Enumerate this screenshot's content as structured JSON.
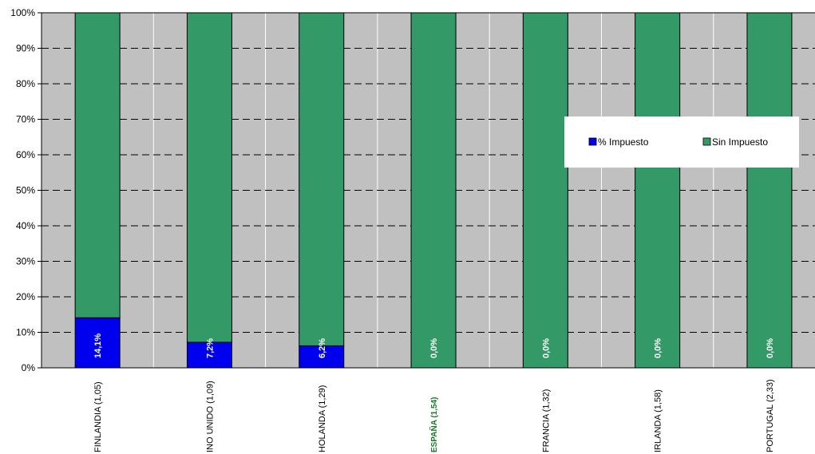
{
  "chart_data": {
    "type": "bar",
    "stacked": true,
    "percent_stacked": true,
    "categories": [
      "FINLANDIA (1,05)",
      "INO UNIDO (1,09)",
      "HOLANDA (1,29)",
      "ESPAÑA (1,54)",
      "FRANCIA (1,32)",
      "IRLANDA (1,58)",
      "PORTUGAL (2,33)"
    ],
    "highlight_category": "ESPAÑA (1,54)",
    "series": [
      {
        "name": "% Impuesto",
        "color": "#0000ee",
        "values": [
          14.1,
          7.2,
          6.2,
          0.0,
          0.0,
          0.0,
          0.0
        ]
      },
      {
        "name": "Sin Impuesto",
        "color": "#339966",
        "values": [
          85.9,
          92.8,
          93.8,
          100.0,
          100.0,
          100.0,
          100.0
        ]
      }
    ],
    "data_labels": [
      "14,1%",
      "7,2%",
      "6,2%",
      "0,0%",
      "0,0%",
      "0,0%",
      "0,0%"
    ],
    "y_ticks": [
      "0%",
      "10%",
      "20%",
      "30%",
      "40%",
      "50%",
      "60%",
      "70%",
      "80%",
      "90%",
      "100%"
    ],
    "ylim": [
      0,
      100
    ],
    "grid": true,
    "legend_position": "right"
  }
}
